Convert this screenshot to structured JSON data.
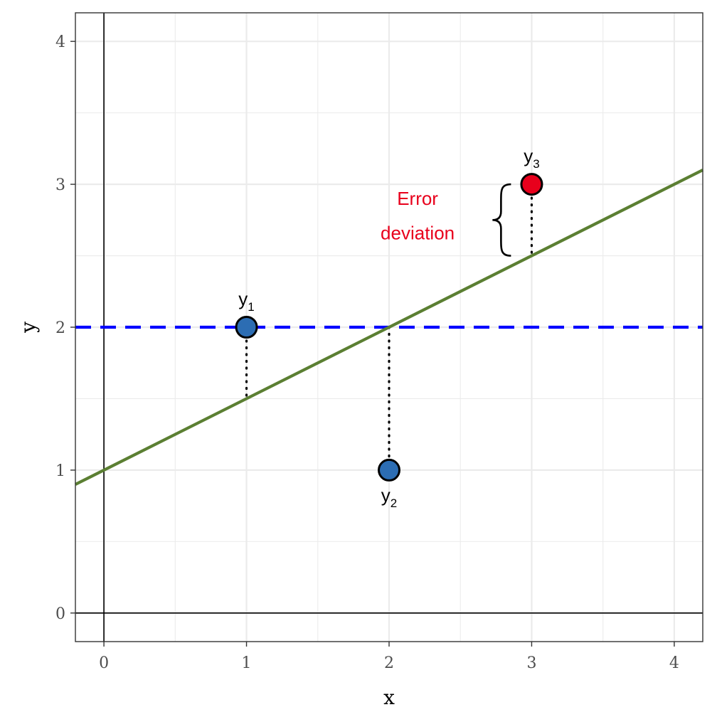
{
  "chart_data": {
    "type": "scatter",
    "title": "",
    "xlabel": "x",
    "ylabel": "y",
    "xlim": [
      -0.2,
      4.2
    ],
    "ylim": [
      -0.2,
      4.2
    ],
    "x_ticks": [
      0,
      1,
      2,
      3,
      4
    ],
    "y_ticks": [
      0,
      1,
      2,
      3,
      4
    ],
    "grid": true,
    "legend": "none",
    "points": [
      {
        "x": 1,
        "y": 2,
        "label": "y",
        "sub": "1",
        "label_pos": "above",
        "color": "#2c6db3"
      },
      {
        "x": 2,
        "y": 1,
        "label": "y",
        "sub": "2",
        "label_pos": "below",
        "color": "#2c6db3"
      },
      {
        "x": 3,
        "y": 3,
        "label": "y",
        "sub": "3",
        "label_pos": "above",
        "color": "#e8001c"
      }
    ],
    "regression_line": {
      "intercept": 1,
      "slope": 0.5,
      "color": "#5b7f32"
    },
    "mean_line": {
      "y": 2,
      "style": "dashed",
      "color": "#0000ff"
    },
    "residuals": [
      {
        "x": 1,
        "y_from": 2,
        "y_to": 1.5
      },
      {
        "x": 2,
        "y_from": 2,
        "y_to": 1
      },
      {
        "x": 3,
        "y_from": 3,
        "y_to": 2.5
      }
    ],
    "annotation": {
      "lines": [
        "Error",
        "deviation"
      ],
      "brace_x": 2.8,
      "brace_y": [
        2.5,
        3.0
      ],
      "text_x": 2.2,
      "text_y": [
        2.9,
        2.66
      ],
      "color": "#e8001c"
    }
  }
}
